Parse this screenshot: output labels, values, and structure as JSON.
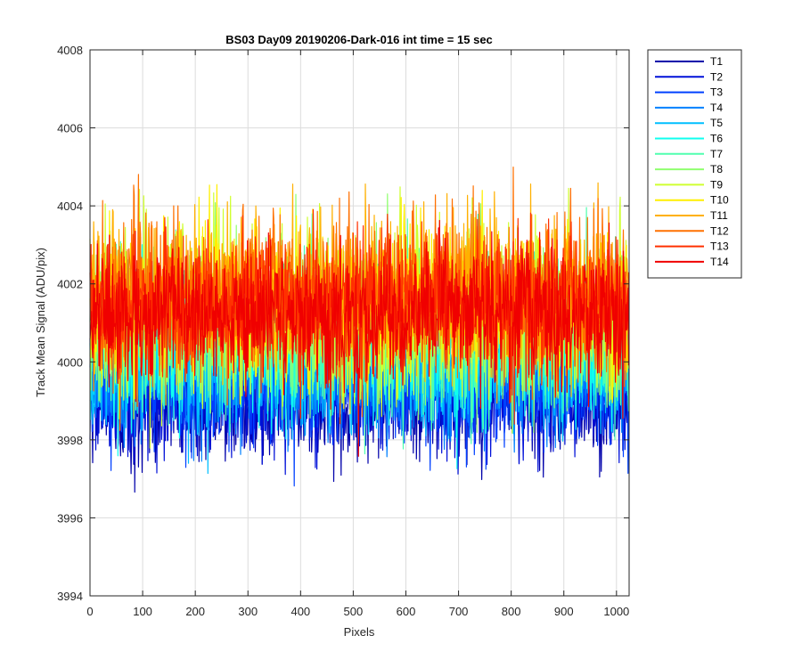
{
  "chart_data": {
    "type": "line",
    "title": "BS03 Day09 20190206-Dark-016 int time = 15 sec",
    "xlabel": "Pixels",
    "ylabel": "Track Mean Signal (ADU/pix)",
    "xlim": [
      0,
      1024
    ],
    "ylim": [
      3994,
      4008
    ],
    "xticks": [
      0,
      100,
      200,
      300,
      400,
      500,
      600,
      700,
      800,
      900,
      1000
    ],
    "yticks": [
      3994,
      3996,
      3998,
      4000,
      4002,
      4004,
      4006,
      4008
    ],
    "grid": true,
    "legend_position": "outside-right",
    "n_points": 1024,
    "series": [
      {
        "name": "T1",
        "color": "#0000AA",
        "mean": 3999.0,
        "amp": 1.0
      },
      {
        "name": "T2",
        "color": "#0010D8",
        "mean": 3999.2,
        "amp": 1.0
      },
      {
        "name": "T3",
        "color": "#0040FF",
        "mean": 3999.5,
        "amp": 1.0
      },
      {
        "name": "T4",
        "color": "#0080FF",
        "mean": 3999.8,
        "amp": 1.1
      },
      {
        "name": "T5",
        "color": "#00BFFF",
        "mean": 4000.1,
        "amp": 1.2
      },
      {
        "name": "T6",
        "color": "#10FFEF",
        "mean": 4000.4,
        "amp": 1.2
      },
      {
        "name": "T7",
        "color": "#50FFAF",
        "mean": 4000.7,
        "amp": 1.3
      },
      {
        "name": "T8",
        "color": "#90FF6F",
        "mean": 4001.0,
        "amp": 1.3
      },
      {
        "name": "T9",
        "color": "#CFFF30",
        "mean": 4001.3,
        "amp": 1.4
      },
      {
        "name": "T10",
        "color": "#FFEF00",
        "mean": 4001.5,
        "amp": 1.3
      },
      {
        "name": "T11",
        "color": "#FFB000",
        "mean": 4001.7,
        "amp": 1.3
      },
      {
        "name": "T12",
        "color": "#FF7000",
        "mean": 4001.8,
        "amp": 1.3
      },
      {
        "name": "T13",
        "color": "#FF3000",
        "mean": 4001.5,
        "amp": 1.2
      },
      {
        "name": "T14",
        "color": "#F00000",
        "mean": 4001.2,
        "amp": 1.2
      }
    ]
  }
}
